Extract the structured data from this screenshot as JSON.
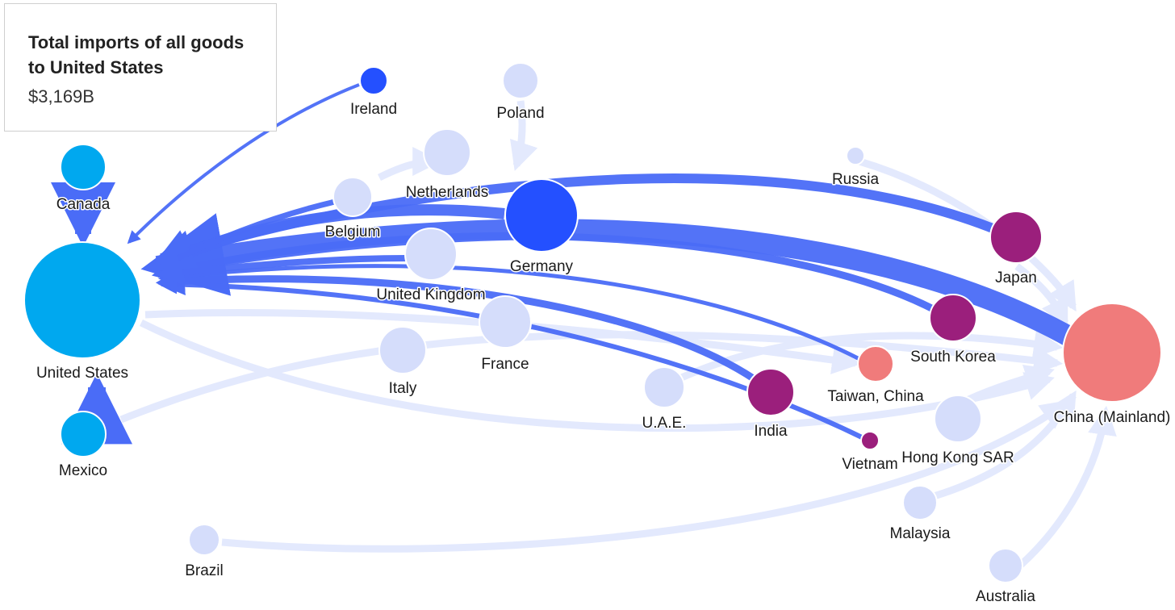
{
  "tooltip": {
    "title": "Total imports of all goods to United States",
    "value": "$3,169B"
  },
  "nodes": [
    {
      "label": "United States"
    },
    {
      "label": "Canada"
    },
    {
      "label": "Mexico"
    },
    {
      "label": "Ireland"
    },
    {
      "label": "Poland"
    },
    {
      "label": "Netherlands"
    },
    {
      "label": "Belgium"
    },
    {
      "label": "Germany"
    },
    {
      "label": "United Kingdom"
    },
    {
      "label": "France"
    },
    {
      "label": "Italy"
    },
    {
      "label": "Russia"
    },
    {
      "label": "Japan"
    },
    {
      "label": "South Korea"
    },
    {
      "label": "Taiwan, China"
    },
    {
      "label": "China (Mainland)"
    },
    {
      "label": "India"
    },
    {
      "label": "Vietnam"
    },
    {
      "label": "Hong Kong SAR"
    },
    {
      "label": "U.A.E."
    },
    {
      "label": "Malaysia"
    },
    {
      "label": "Brazil"
    },
    {
      "label": "Australia"
    }
  ]
}
